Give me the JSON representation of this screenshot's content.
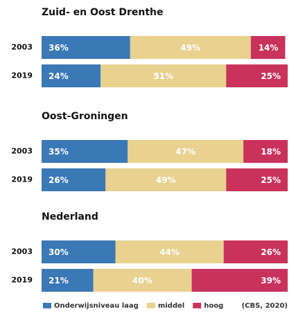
{
  "chart_data": [
    {
      "type": "bar",
      "orientation": "horizontal",
      "stacked": true,
      "title": "Zuid- en Oost Drenthe",
      "categories": [
        "2003",
        "2019"
      ],
      "xlim": [
        0,
        100
      ],
      "series": [
        {
          "name": "Onderwijsniveau laag",
          "color": "#3b78b6",
          "values": [
            36,
            24
          ],
          "value_labels": [
            "36%",
            "24%"
          ]
        },
        {
          "name": "middel",
          "color": "#e9d18f",
          "values": [
            49,
            51
          ],
          "value_labels": [
            "49%",
            "51%"
          ]
        },
        {
          "name": "hoog",
          "color": "#c9335b",
          "values": [
            14,
            25
          ],
          "value_labels": [
            "14%",
            "25%"
          ]
        }
      ]
    },
    {
      "type": "bar",
      "orientation": "horizontal",
      "stacked": true,
      "title": "Oost-Groningen",
      "categories": [
        "2003",
        "2019"
      ],
      "xlim": [
        0,
        100
      ],
      "series": [
        {
          "name": "Onderwijsniveau laag",
          "color": "#3b78b6",
          "values": [
            35,
            26
          ],
          "value_labels": [
            "35%",
            "26%"
          ]
        },
        {
          "name": "middel",
          "color": "#e9d18f",
          "values": [
            47,
            49
          ],
          "value_labels": [
            "47%",
            "49%"
          ]
        },
        {
          "name": "hoog",
          "color": "#c9335b",
          "values": [
            18,
            25
          ],
          "value_labels": [
            "18%",
            "25%"
          ]
        }
      ]
    },
    {
      "type": "bar",
      "orientation": "horizontal",
      "stacked": true,
      "title": "Nederland",
      "categories": [
        "2003",
        "2019"
      ],
      "xlim": [
        0,
        100
      ],
      "series": [
        {
          "name": "Onderwijsniveau laag",
          "color": "#3b78b6",
          "values": [
            30,
            21
          ],
          "value_labels": [
            "30%",
            "21%"
          ]
        },
        {
          "name": "middel",
          "color": "#e9d18f",
          "values": [
            44,
            40
          ],
          "value_labels": [
            "44%",
            "40%"
          ]
        },
        {
          "name": "hoog",
          "color": "#c9335b",
          "values": [
            26,
            39
          ],
          "value_labels": [
            "26%",
            "39%"
          ]
        }
      ]
    }
  ],
  "footer": {
    "source": "(CBS, 2020)"
  }
}
